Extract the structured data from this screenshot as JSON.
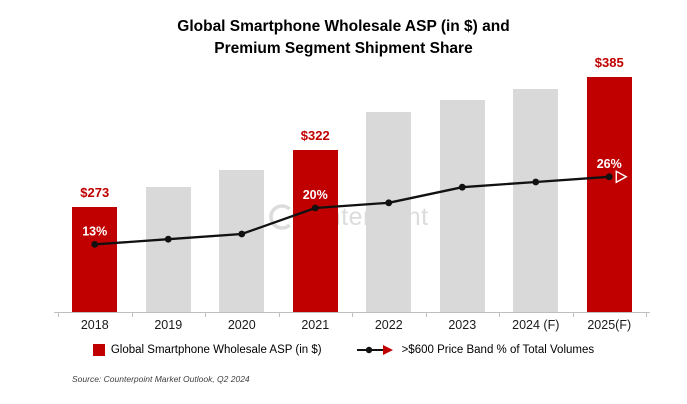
{
  "header": {
    "title_line1": "Global Smartphone Wholesale ASP (in $) and",
    "title_line2": "Premium Segment Shipment Share"
  },
  "chart_data": {
    "type": "bar+line",
    "title": "Global Smartphone Wholesale ASP (in $) and Premium Segment Shipment Share",
    "categories": [
      "2018",
      "2019",
      "2020",
      "2021",
      "2022",
      "2023",
      "2024 (F)",
      "2025(F)"
    ],
    "series": [
      {
        "name": "Global Smartphone Wholesale ASP (in $)",
        "type": "bar",
        "unit": "USD",
        "values": [
          273,
          290,
          305,
          322,
          355,
          365,
          375,
          385
        ],
        "value_labels": [
          "$273",
          null,
          null,
          "$322",
          null,
          null,
          null,
          "$385"
        ],
        "highlighted": [
          true,
          false,
          false,
          true,
          false,
          false,
          false,
          true
        ],
        "note": "Only $273, $322 and $385 are labeled in the chart; unlabeled gray-bar values are estimated from bar heights"
      },
      {
        "name": ">$600 Price Band % of Total Volumes",
        "type": "line",
        "unit": "%",
        "values": [
          13,
          14,
          15,
          20,
          21,
          24,
          25,
          26
        ],
        "value_labels": [
          "13%",
          null,
          null,
          "20%",
          null,
          null,
          null,
          "26%"
        ],
        "marker": "dot",
        "end_marker": "arrow",
        "note": "Only 13%, 20% and 26% are labeled in the chart; other points estimated from line position"
      }
    ],
    "grid": false,
    "legend_position": "bottom"
  },
  "legend": {
    "bar_label": "Global Smartphone Wholesale ASP (in $)",
    "line_label": ">$600 Price Band % of Total Volumes"
  },
  "watermark": {
    "brand": "Counterpoint",
    "text_after_logo": "ounterpoint"
  },
  "source": "Source: Counterpoint Market Outlook, Q2 2024",
  "colors": {
    "highlight": "#c00000",
    "bar_gray": "#d9d9d9",
    "line": "#111111",
    "label_on_bar": "#ffffff",
    "axis": "#bfbfbf"
  }
}
